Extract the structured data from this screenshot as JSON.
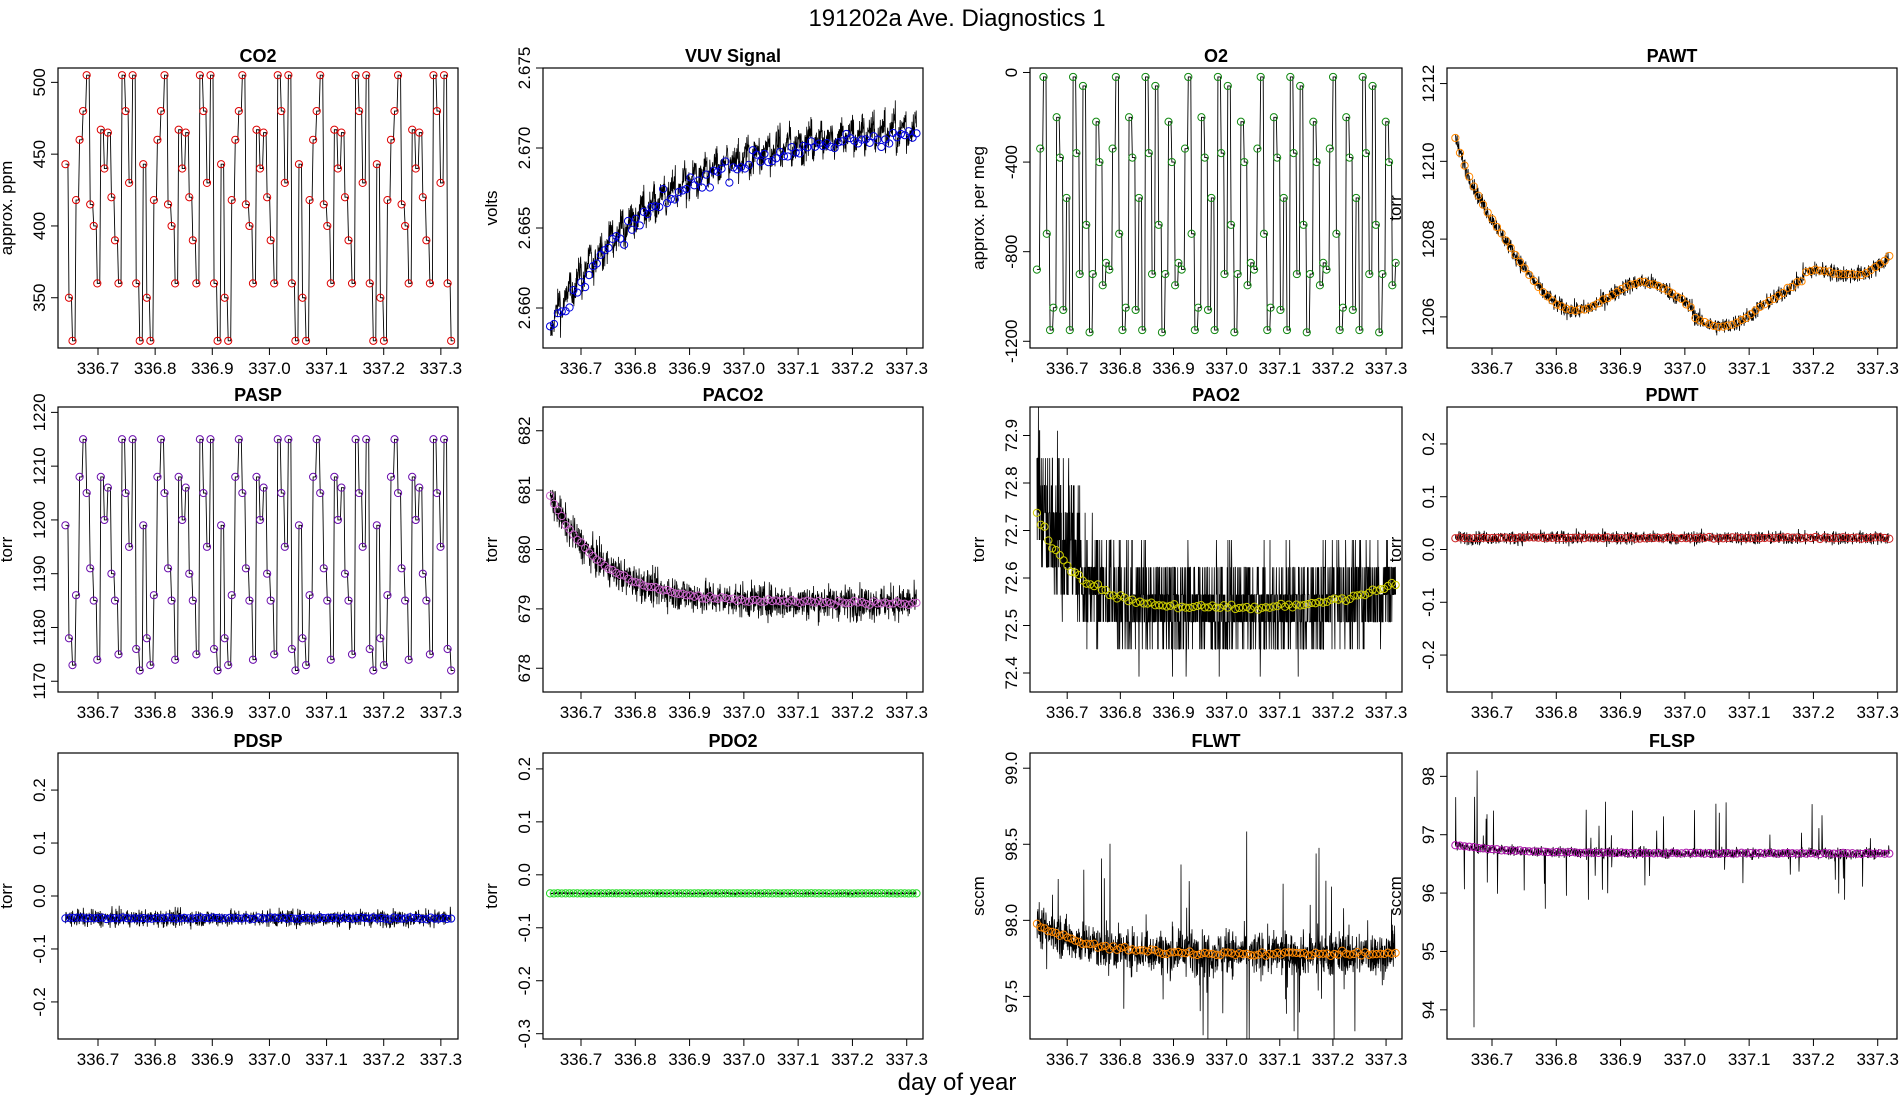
{
  "page": {
    "title": "191202a   Ave. Diagnostics 1",
    "xlabel": "day of year"
  },
  "chart_data": [
    {
      "type": "line",
      "title": "CO2",
      "ylabel": "approx. ppm",
      "xlim": [
        336.63,
        337.33
      ],
      "ylim": [
        315,
        510
      ],
      "yticks": [
        350,
        400,
        450,
        500
      ],
      "ytick_labels": [
        "350",
        "400",
        "450",
        "500"
      ],
      "xticks": [
        336.7,
        336.8,
        336.9,
        337.0,
        337.1,
        337.2,
        337.3
      ],
      "xtick_labels": [
        "336.7",
        "336.8",
        "336.9",
        "337.0",
        "337.1",
        "337.2",
        "337.3"
      ],
      "pattern": "cycle",
      "cycle": [
        443,
        350,
        320,
        418,
        460,
        480,
        505,
        415,
        400,
        360,
        467,
        440,
        465,
        420,
        390,
        360,
        505,
        480,
        430,
        505,
        360,
        320
      ],
      "noise": 0,
      "drift": 0,
      "marker_color": "#dd0000",
      "line_color": "#000000"
    },
    {
      "type": "line",
      "title": "VUV Signal",
      "ylabel": "volts",
      "xlim": [
        336.63,
        337.33
      ],
      "ylim": [
        2.6575,
        2.675
      ],
      "yticks": [
        2.66,
        2.665,
        2.67,
        2.675
      ],
      "ytick_labels": [
        "2.660",
        "2.665",
        "2.670",
        "2.675"
      ],
      "xticks": [
        336.7,
        336.8,
        336.9,
        337.0,
        337.1,
        337.2,
        337.3
      ],
      "xtick_labels": [
        "336.7",
        "336.8",
        "336.9",
        "337.0",
        "337.1",
        "337.2",
        "337.3"
      ],
      "pattern": "log",
      "start": 2.659,
      "end": 2.6712,
      "rate": 3.2,
      "noise": 0.0014,
      "marker_color": "#0000dd",
      "line_color": "#000000"
    },
    {
      "type": "line",
      "title": "O2",
      "ylabel": "approx. per meg",
      "xlim": [
        336.63,
        337.33
      ],
      "ylim": [
        -1230,
        20
      ],
      "yticks": [
        -1200,
        -800,
        -400,
        0
      ],
      "ytick_labels": [
        "-1200",
        "-800",
        "-400",
        "0"
      ],
      "xticks": [
        336.7,
        336.8,
        336.9,
        337.0,
        337.1,
        337.2,
        337.3
      ],
      "xtick_labels": [
        "336.7",
        "336.8",
        "336.9",
        "337.0",
        "337.1",
        "337.2",
        "337.3"
      ],
      "pattern": "cycle",
      "cycle": [
        -880,
        -340,
        -20,
        -720,
        -1150,
        -1050,
        -200,
        -380,
        -1060,
        -560,
        -1150,
        -20,
        -360,
        -900,
        -60,
        -680,
        -1160,
        -900,
        -220,
        -400,
        -950,
        -850
      ],
      "noise": 0,
      "drift": 0,
      "marker_color": "#118811",
      "line_color": "#000000"
    },
    {
      "type": "line",
      "title": "PAWT",
      "ylabel": "torr",
      "xlim": [
        336.63,
        337.33
      ],
      "ylim": [
        1205.2,
        1212.4
      ],
      "yticks": [
        1206,
        1208,
        1210,
        1212
      ],
      "ytick_labels": [
        "1206",
        "1208",
        "1210",
        "1212"
      ],
      "xticks": [
        336.7,
        336.8,
        336.9,
        337.0,
        337.1,
        337.2,
        337.3
      ],
      "xtick_labels": [
        "336.7",
        "336.8",
        "336.9",
        "337.0",
        "337.1",
        "337.2",
        "337.3"
      ],
      "pattern": "pawt",
      "noise": 0.35,
      "marker_color": "#ff8800",
      "line_color": "#000000"
    },
    {
      "type": "line",
      "title": "PASP",
      "ylabel": "torr",
      "xlim": [
        336.63,
        337.33
      ],
      "ylim": [
        1168,
        1221
      ],
      "yticks": [
        1170,
        1180,
        1190,
        1200,
        1210,
        1220
      ],
      "ytick_labels": [
        "1170",
        "1180",
        "1190",
        "1200",
        "1210",
        "1220"
      ],
      "xticks": [
        336.7,
        336.8,
        336.9,
        337.0,
        337.1,
        337.2,
        337.3
      ],
      "xtick_labels": [
        "336.7",
        "336.8",
        "336.9",
        "337.0",
        "337.1",
        "337.2",
        "337.3"
      ],
      "pattern": "cycle",
      "cycle": [
        1199,
        1178,
        1173,
        1186,
        1208,
        1215,
        1205,
        1191,
        1185,
        1174,
        1208,
        1200,
        1206,
        1190,
        1185,
        1175,
        1215,
        1205,
        1195,
        1215,
        1176,
        1172
      ],
      "noise": 0,
      "drift": 0,
      "marker_color": "#6a0dad",
      "line_color": "#000000"
    },
    {
      "type": "line",
      "title": "PACO2",
      "ylabel": "torr",
      "xlim": [
        336.63,
        337.33
      ],
      "ylim": [
        677.6,
        682.4
      ],
      "yticks": [
        678,
        679,
        680,
        681,
        682
      ],
      "ytick_labels": [
        "678",
        "679",
        "680",
        "681",
        "682"
      ],
      "xticks": [
        336.7,
        336.8,
        336.9,
        337.0,
        337.1,
        337.2,
        337.3
      ],
      "xtick_labels": [
        "336.7",
        "336.8",
        "336.9",
        "337.0",
        "337.1",
        "337.2",
        "337.3"
      ],
      "pattern": "exp",
      "start": 680.9,
      "end": 679.1,
      "rate": 7,
      "noise": 0.45,
      "marker_color": "#cc66cc",
      "line_color": "#000000"
    },
    {
      "type": "line",
      "title": "PAO2",
      "ylabel": "torr",
      "xlim": [
        336.63,
        337.33
      ],
      "ylim": [
        72.36,
        72.96
      ],
      "yticks": [
        72.4,
        72.5,
        72.6,
        72.7,
        72.8,
        72.9
      ],
      "ytick_labels": [
        "72.4",
        "72.5",
        "72.6",
        "72.7",
        "72.8",
        "72.9"
      ],
      "xticks": [
        336.7,
        336.8,
        336.9,
        337.0,
        337.1,
        337.2,
        337.3
      ],
      "xtick_labels": [
        "336.7",
        "336.8",
        "336.9",
        "337.0",
        "337.1",
        "337.2",
        "337.3"
      ],
      "pattern": "pao2",
      "noise": 0.1,
      "marker_color": "#cccc00",
      "line_color": "#000000"
    },
    {
      "type": "line",
      "title": "PDWT",
      "ylabel": "torr",
      "xlim": [
        336.63,
        337.33
      ],
      "ylim": [
        -0.27,
        0.27
      ],
      "yticks": [
        -0.2,
        -0.1,
        0.0,
        0.1,
        0.2
      ],
      "ytick_labels": [
        "-0.2",
        "-0.1",
        "0.0",
        "0.1",
        "0.2"
      ],
      "xticks": [
        336.7,
        336.8,
        336.9,
        337.0,
        337.1,
        337.2,
        337.3
      ],
      "xtick_labels": [
        "336.7",
        "336.8",
        "336.9",
        "337.0",
        "337.1",
        "337.2",
        "337.3"
      ],
      "pattern": "flat",
      "value": 0.022,
      "noise": 0.02,
      "marker_color": "#cc2222",
      "line_color": "#000000"
    },
    {
      "type": "line",
      "title": "PDSP",
      "ylabel": "torr",
      "xlim": [
        336.63,
        337.33
      ],
      "ylim": [
        -0.27,
        0.27
      ],
      "yticks": [
        -0.2,
        -0.1,
        0.0,
        0.1,
        0.2
      ],
      "ytick_labels": [
        "-0.2",
        "-0.1",
        "0.0",
        "0.1",
        "0.2"
      ],
      "xticks": [
        336.7,
        336.8,
        336.9,
        337.0,
        337.1,
        337.2,
        337.3
      ],
      "xtick_labels": [
        "336.7",
        "336.8",
        "336.9",
        "337.0",
        "337.1",
        "337.2",
        "337.3"
      ],
      "pattern": "flat",
      "value": -0.042,
      "noise": 0.025,
      "marker_color": "#0000dd",
      "line_color": "#000000"
    },
    {
      "type": "line",
      "title": "PDO2",
      "ylabel": "torr",
      "xlim": [
        336.63,
        337.33
      ],
      "ylim": [
        -0.31,
        0.23
      ],
      "yticks": [
        -0.3,
        -0.2,
        -0.1,
        0.0,
        0.1,
        0.2
      ],
      "ytick_labels": [
        "-0.3",
        "-0.2",
        "-0.1",
        "0.0",
        "0.1",
        "0.2"
      ],
      "xticks": [
        336.7,
        336.8,
        336.9,
        337.0,
        337.1,
        337.2,
        337.3
      ],
      "xtick_labels": [
        "336.7",
        "336.8",
        "336.9",
        "337.0",
        "337.1",
        "337.2",
        "337.3"
      ],
      "pattern": "flat",
      "value": -0.035,
      "noise": 0.003,
      "marker_color": "#22dd22",
      "line_color": "#000000"
    },
    {
      "type": "line",
      "title": "FLWT",
      "ylabel": "sccm",
      "xlim": [
        336.63,
        337.33
      ],
      "ylim": [
        97.22,
        99.1
      ],
      "yticks": [
        97.5,
        98.0,
        98.5,
        99.0
      ],
      "ytick_labels": [
        "97.5",
        "98.0",
        "98.5",
        "99.0"
      ],
      "xticks": [
        336.7,
        336.8,
        336.9,
        337.0,
        337.1,
        337.2,
        337.3
      ],
      "xtick_labels": [
        "336.7",
        "336.8",
        "336.9",
        "337.0",
        "337.1",
        "337.2",
        "337.3"
      ],
      "pattern": "exp",
      "start": 97.98,
      "end": 97.78,
      "rate": 8,
      "noise": 0.22,
      "spikes": 0.5,
      "marker_color": "#ff8800",
      "line_color": "#000000"
    },
    {
      "type": "line",
      "title": "FLSP",
      "ylabel": "sccm",
      "xlim": [
        336.63,
        337.33
      ],
      "ylim": [
        93.5,
        98.4
      ],
      "yticks": [
        94,
        95,
        96,
        97,
        98
      ],
      "ytick_labels": [
        "94",
        "95",
        "96",
        "97",
        "98"
      ],
      "xticks": [
        336.7,
        336.8,
        336.9,
        337.0,
        337.1,
        337.2,
        337.3
      ],
      "xtick_labels": [
        "336.7",
        "336.8",
        "336.9",
        "337.0",
        "337.1",
        "337.2",
        "337.3"
      ],
      "pattern": "exp",
      "start": 96.82,
      "end": 96.68,
      "rate": 8,
      "noise": 0.14,
      "spikes": 0.7,
      "marker_color": "#aa11aa",
      "line_color": "#000000"
    }
  ]
}
